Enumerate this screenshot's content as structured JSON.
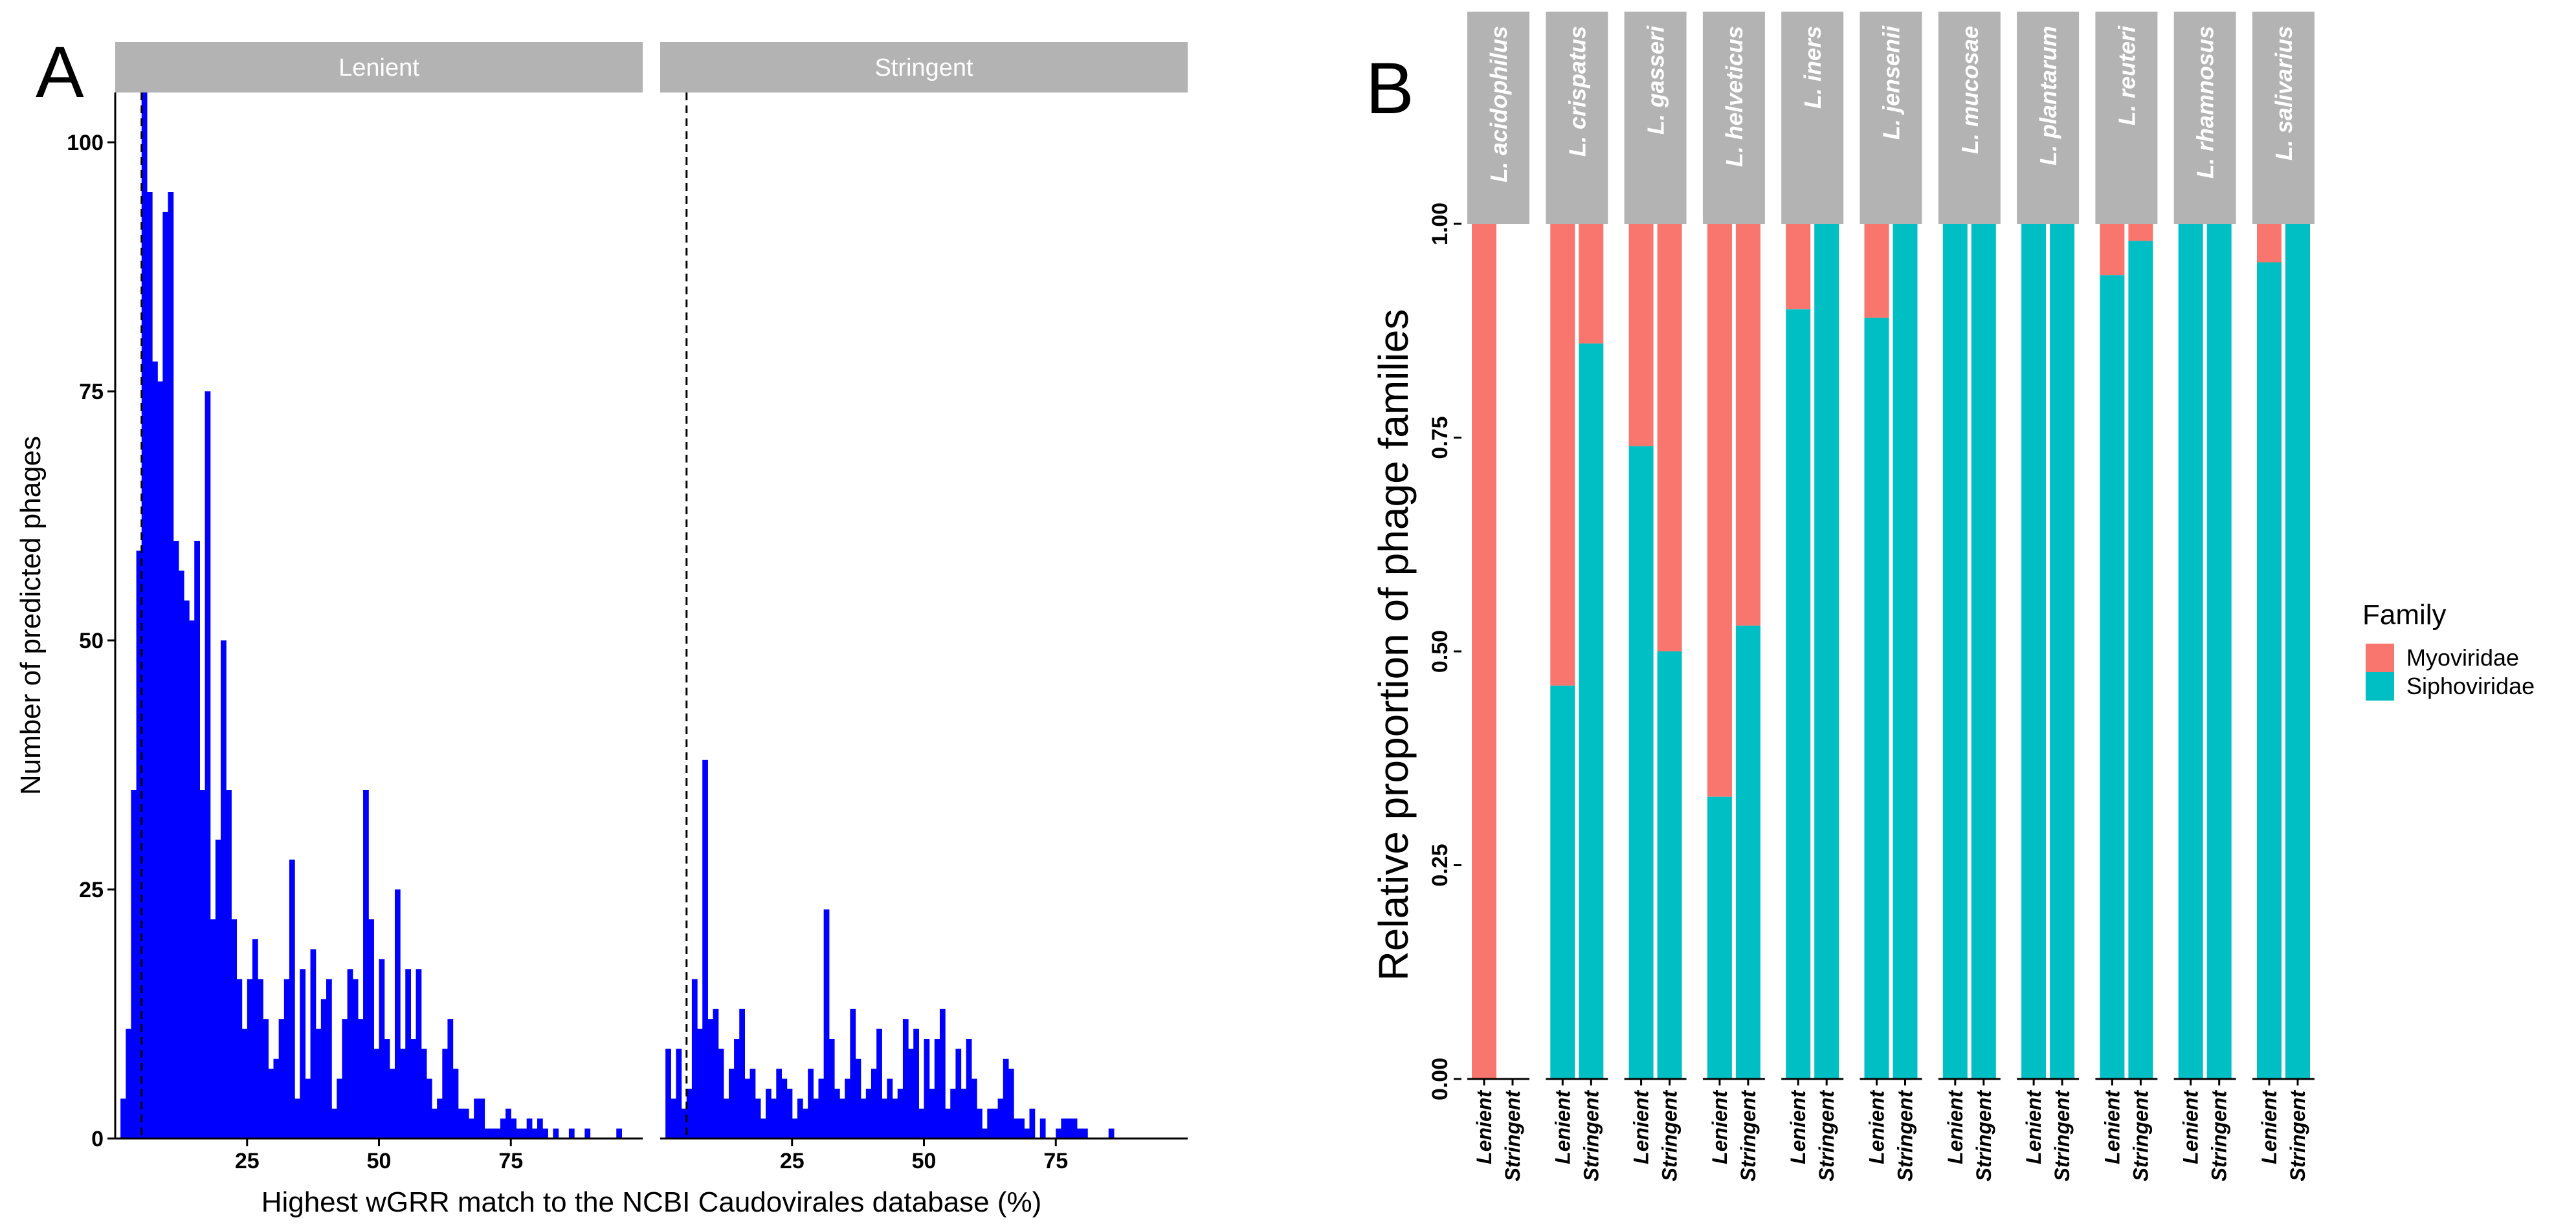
{
  "chart_data": [
    {
      "panel": "A",
      "type": "bar",
      "chart_kind": "histogram",
      "xlabel": "Highest wGRR match to the NCBI Caudovirales database (%)",
      "ylabel": "Number of predicted phages",
      "xlim": [
        0,
        100
      ],
      "ylim": [
        0,
        105
      ],
      "x_ticks": [
        "25",
        "50",
        "75"
      ],
      "y_ticks": [
        "0",
        "25",
        "50",
        "75",
        "100"
      ],
      "bar_color": "#0000ff",
      "bin_width": 1,
      "threshold_line_x": 5,
      "facets": [
        {
          "label": "Lenient",
          "counts": [
            4,
            11,
            35,
            59,
            105,
            95,
            78,
            76,
            93,
            95,
            60,
            57,
            54,
            52,
            60,
            35,
            75,
            22,
            30,
            50,
            35,
            22,
            16,
            11,
            16,
            20,
            16,
            12,
            7,
            8,
            12,
            16,
            28,
            4,
            17,
            6,
            19,
            11,
            14,
            16,
            3,
            6,
            12,
            17,
            16,
            12,
            35,
            22,
            9,
            18,
            10,
            7,
            25,
            9,
            17,
            10,
            17,
            9,
            6,
            3,
            4,
            9,
            12,
            7,
            3,
            3,
            2,
            4,
            4,
            1,
            1,
            1,
            2,
            3,
            2,
            1,
            1,
            2,
            1,
            2,
            1,
            0,
            1,
            0,
            0,
            1,
            0,
            0,
            1,
            0,
            0,
            0,
            0,
            0,
            1,
            0
          ]
        },
        {
          "label": "Stringent",
          "counts": [
            9,
            4,
            9,
            3,
            5,
            16,
            11,
            38,
            12,
            13,
            9,
            4,
            7,
            10,
            13,
            6,
            7,
            4,
            2,
            5,
            4,
            7,
            6,
            5,
            2,
            4,
            3,
            7,
            4,
            6,
            23,
            10,
            5,
            4,
            6,
            13,
            8,
            4,
            5,
            7,
            11,
            4,
            6,
            4,
            5,
            12,
            9,
            11,
            3,
            10,
            5,
            10,
            13,
            3,
            5,
            9,
            5,
            10,
            6,
            3,
            1,
            3,
            3,
            4,
            8,
            7,
            2,
            2,
            1,
            3,
            0,
            2,
            0,
            0,
            1,
            2,
            2,
            2,
            1,
            1,
            0,
            0,
            0,
            0,
            1,
            0
          ]
        }
      ]
    },
    {
      "panel": "B",
      "type": "bar",
      "chart_kind": "stacked proportion",
      "ylabel": "Relative proportion of phage families",
      "ylim": [
        0,
        1
      ],
      "y_ticks": [
        "0.00",
        "0.25",
        "0.50",
        "0.75",
        "1.00"
      ],
      "conditions": [
        "Lenient",
        "Stringent"
      ],
      "legend": {
        "title": "Family",
        "position": "right",
        "entries": [
          {
            "name": "Myoviridae",
            "color": "#f8766d"
          },
          {
            "name": "Siphoviridae",
            "color": "#00bfc4"
          }
        ]
      },
      "species": [
        {
          "name": "L. acidophilus",
          "siphoviridae": [
            0.0,
            null
          ]
        },
        {
          "name": "L. crispatus",
          "siphoviridae": [
            0.46,
            0.86
          ]
        },
        {
          "name": "L. gasseri",
          "siphoviridae": [
            0.74,
            0.5
          ]
        },
        {
          "name": "L. helveticus",
          "siphoviridae": [
            0.33,
            0.53
          ]
        },
        {
          "name": "L. iners",
          "siphoviridae": [
            0.9,
            1.0
          ]
        },
        {
          "name": "L. jensenii",
          "siphoviridae": [
            0.89,
            1.0
          ]
        },
        {
          "name": "L. mucosae",
          "siphoviridae": [
            1.0,
            1.0
          ]
        },
        {
          "name": "L. plantarum",
          "siphoviridae": [
            1.0,
            1.0
          ]
        },
        {
          "name": "L. reuteri",
          "siphoviridae": [
            0.94,
            0.98
          ]
        },
        {
          "name": "L. rhamnosus",
          "siphoviridae": [
            1.0,
            1.0
          ]
        },
        {
          "name": "L. salivarius",
          "siphoviridae": [
            0.955,
            1.0
          ]
        }
      ]
    }
  ],
  "labels": {
    "panel_a": "A",
    "panel_b": "B"
  }
}
